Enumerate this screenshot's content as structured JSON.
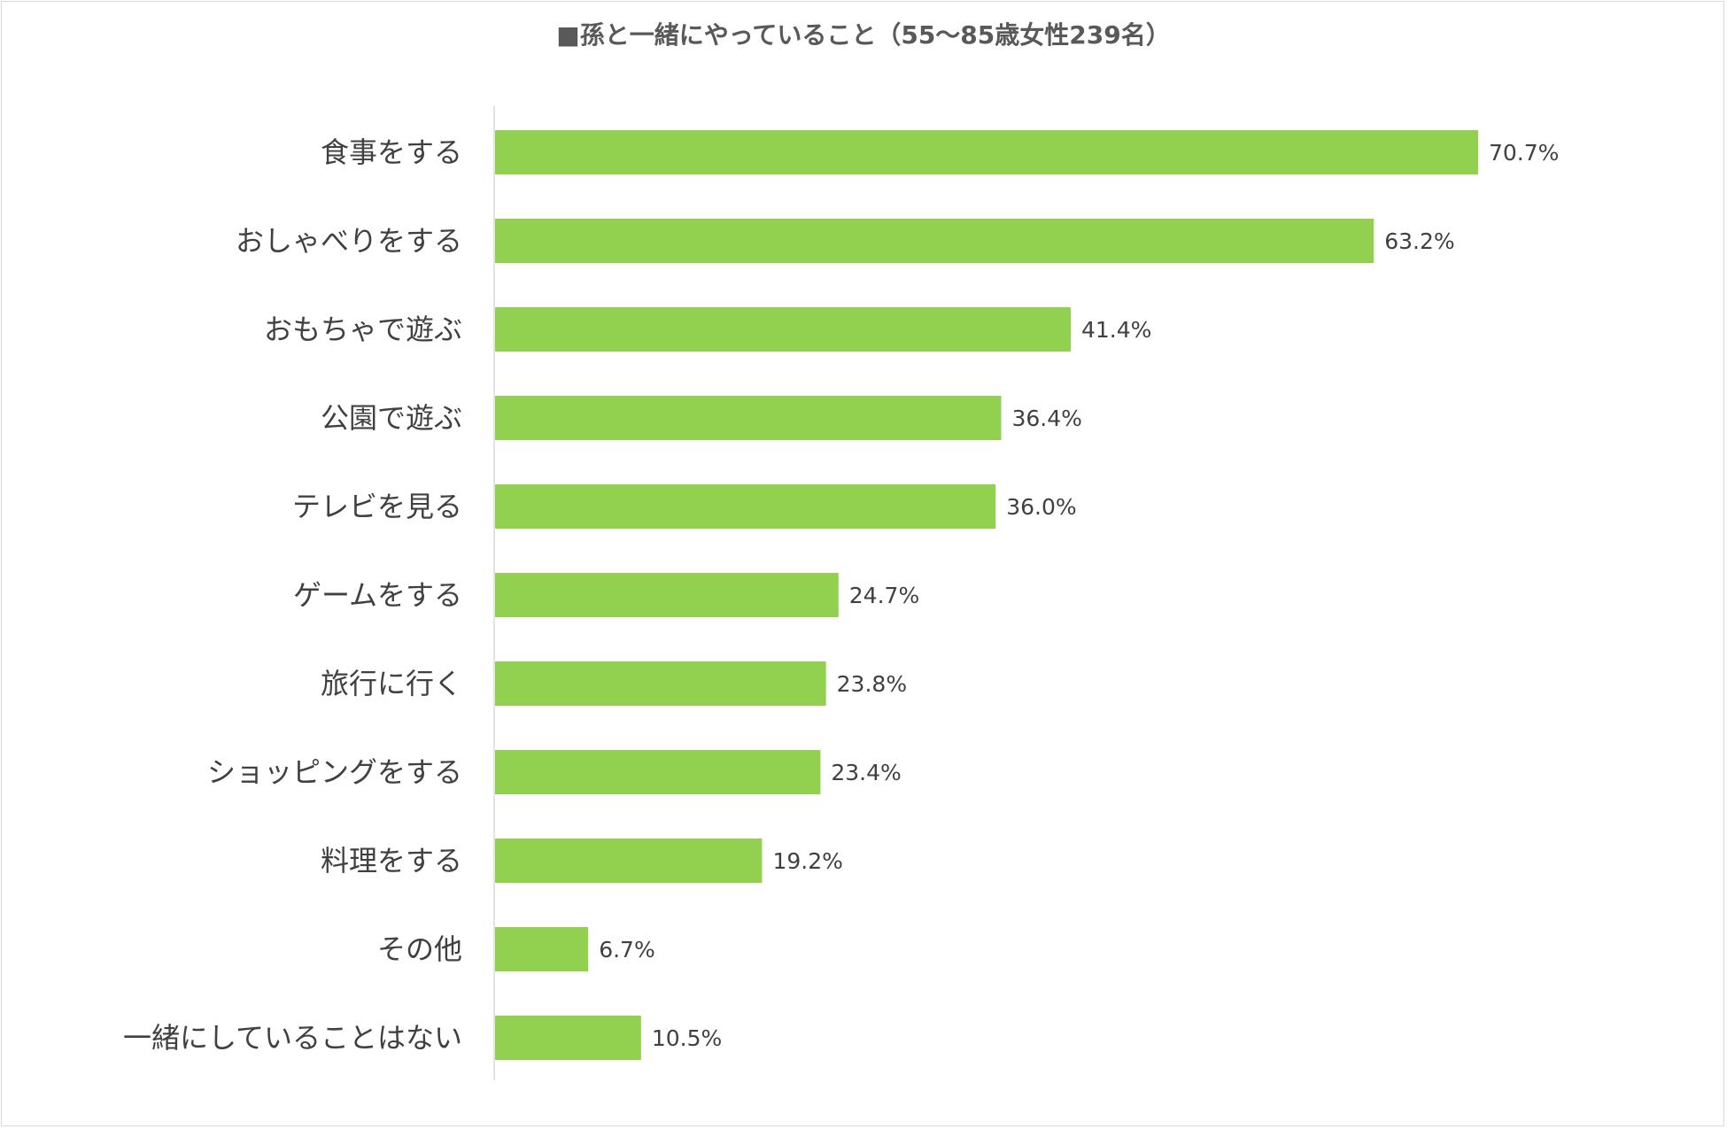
{
  "chart_data": {
    "type": "bar",
    "orientation": "horizontal",
    "title": "■孫と一緒にやっていること（55～85歳女性239名）",
    "categories": [
      "食事をする",
      "おしゃべりをする",
      "おもちゃで遊ぶ",
      "公園で遊ぶ",
      "テレビを見る",
      "ゲームをする",
      "旅行に行く",
      "ショッピングをする",
      "料理をする",
      "その他",
      "一緒にしていることはない"
    ],
    "values": [
      70.7,
      63.2,
      41.4,
      36.4,
      36.0,
      24.7,
      23.8,
      23.4,
      19.2,
      6.7,
      10.5
    ],
    "value_labels": [
      "70.7%",
      "63.2%",
      "41.4%",
      "36.4%",
      "36.0%",
      "24.7%",
      "23.8%",
      "23.4%",
      "19.2%",
      "6.7%",
      "10.5%"
    ],
    "xlim": [
      0,
      80
    ],
    "unit": "%",
    "grid": false,
    "legend": "none",
    "bar_color": "#92d050",
    "axis_color": "#d9d9d9"
  }
}
